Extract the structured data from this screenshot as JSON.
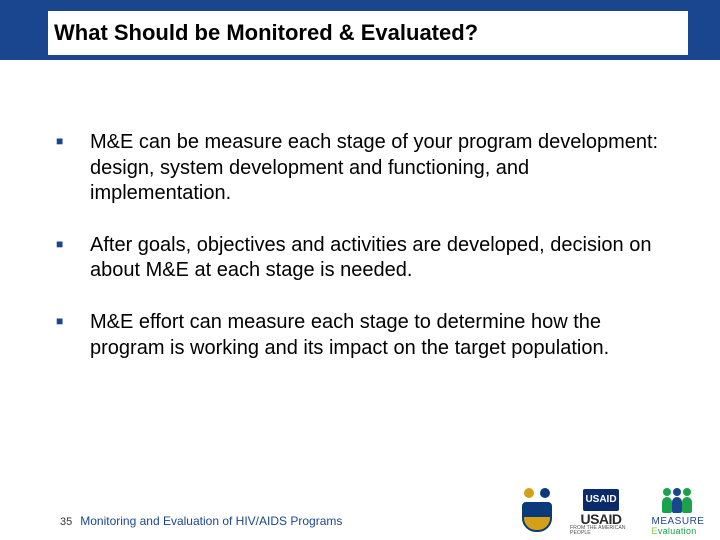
{
  "colors": {
    "brand_blue": "#1a468f",
    "text_black": "#000000",
    "slide_bg": "#ffffff",
    "accent_green": "#1aa34a",
    "gold": "#d4a017",
    "usaid_navy": "#0a2a6a"
  },
  "typography": {
    "title_fontsize": 22,
    "bullet_fontsize": 20,
    "footer_caption_fontsize": 12,
    "slidenum_fontsize": 11
  },
  "slide": {
    "title": "What Should be Monitored & Evaluated?",
    "bullets": [
      "M&E can be measure each stage of your program development: design, system development and functioning, and implementation.",
      "After goals, objectives and activities are developed, decision on about M&E at each stage is needed.",
      "M&E effort can measure each stage to determine how the program is working and its impact on the target population."
    ],
    "slide_number": "35",
    "footer_caption": "Monitoring and Evaluation of HIV/AIDS Programs"
  },
  "logos": {
    "crest": {
      "name": "university-crest"
    },
    "usaid": {
      "word": "USAID",
      "tagline": "FROM THE AMERICAN PEOPLE",
      "box_label": "USAID"
    },
    "measure": {
      "line1": "MEASURE",
      "line2_prefix": "E",
      "line2_rest": "valuation"
    }
  }
}
